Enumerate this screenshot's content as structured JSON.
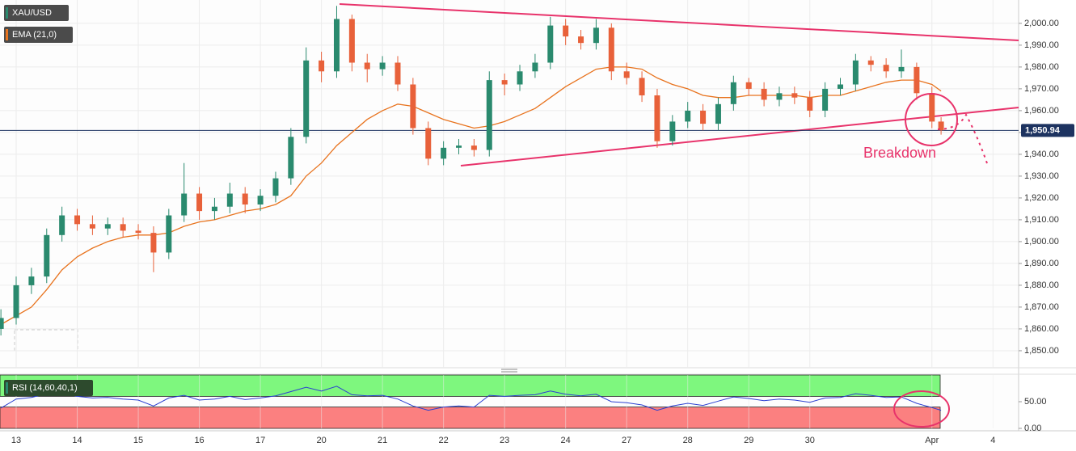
{
  "chart_data": {
    "type": "candlestick",
    "x": [
      -0.25,
      0,
      0.25,
      0.5,
      0.75,
      1,
      1.25,
      1.5,
      1.75,
      2,
      2.25,
      2.5,
      2.75,
      3,
      3.25,
      3.5,
      3.75,
      4,
      4.25,
      4.5,
      4.75,
      5,
      5.25,
      5.5,
      5.75,
      6,
      6.25,
      6.5,
      6.75,
      7,
      7.25,
      7.5,
      7.75,
      8,
      8.25,
      8.5,
      8.75,
      9,
      9.25,
      9.5,
      9.75,
      10,
      10.25,
      10.5,
      10.75,
      11,
      11.25,
      11.5,
      11.75,
      12,
      12.25,
      12.5,
      12.75,
      13,
      13.25,
      13.5,
      13.75,
      14,
      14.25,
      14.5,
      14.75,
      15,
      15.15
    ],
    "xlim": [
      -0.265,
      16.42
    ],
    "xticks": [
      {
        "value": 0,
        "label": "13"
      },
      {
        "value": 1,
        "label": "14"
      },
      {
        "value": 2,
        "label": "15"
      },
      {
        "value": 3,
        "label": "16"
      },
      {
        "value": 4,
        "label": "17"
      },
      {
        "value": 5,
        "label": "20"
      },
      {
        "value": 6,
        "label": "21"
      },
      {
        "value": 7,
        "label": "22"
      },
      {
        "value": 8,
        "label": "23"
      },
      {
        "value": 9,
        "label": "24"
      },
      {
        "value": 10,
        "label": "27"
      },
      {
        "value": 11,
        "label": "28"
      },
      {
        "value": 12,
        "label": "29"
      },
      {
        "value": 13,
        "label": "30"
      },
      {
        "value": 15,
        "label": "Apr"
      },
      {
        "value": 16,
        "label": "4"
      }
    ],
    "ylim": [
      1842.2,
      2010.7
    ],
    "yticks": [
      {
        "value": 1850,
        "label": "1,850.00"
      },
      {
        "value": 1860,
        "label": "1,860.00"
      },
      {
        "value": 1870,
        "label": "1,870.00"
      },
      {
        "value": 1880,
        "label": "1,880.00"
      },
      {
        "value": 1890,
        "label": "1,890.00"
      },
      {
        "value": 1900,
        "label": "1,900.00"
      },
      {
        "value": 1910,
        "label": "1,910.00"
      },
      {
        "value": 1920,
        "label": "1,920.00"
      },
      {
        "value": 1930,
        "label": "1,930.00"
      },
      {
        "value": 1940,
        "label": "1,940.00"
      },
      {
        "value": 1950,
        "label": "1,950.00"
      },
      {
        "value": 1960,
        "label": "1,960.00"
      },
      {
        "value": 1970,
        "label": "1,970.00"
      },
      {
        "value": 1980,
        "label": "1,980.00"
      },
      {
        "value": 1990,
        "label": "1,990.00"
      },
      {
        "value": 2000,
        "label": "2,000.00"
      }
    ],
    "grid": true,
    "series": [
      {
        "name": "XAU/USD",
        "type": "candlestick",
        "up_color": "#2a8a6e",
        "down_color": "#e8613a",
        "open": [
          1860,
          1865,
          1880,
          1884,
          1903,
          1912,
          1908,
          1906,
          1908,
          1905,
          1904,
          1895,
          1912,
          1922,
          1914,
          1916,
          1922,
          1917,
          1921,
          1929,
          1948,
          1983,
          1978,
          2002,
          1982,
          1979,
          1982,
          1972,
          1952,
          1938,
          1943,
          1944,
          1942,
          1974,
          1972,
          1978,
          1982,
          1999,
          1994,
          1991,
          1998,
          1978,
          1975,
          1967,
          1946,
          1955,
          1960,
          1954,
          1963,
          1973,
          1970,
          1965,
          1968,
          1966,
          1960,
          1970,
          1972,
          1983,
          1981,
          1978,
          1980,
          1968,
          1955
        ],
        "high": [
          1869,
          1884,
          1888,
          1906,
          1916,
          1915,
          1912,
          1911,
          1911,
          1908,
          1907,
          1915,
          1936,
          1925,
          1920,
          1927,
          1925,
          1924,
          1932,
          1952,
          1989,
          1987,
          2008,
          2004,
          1986,
          1985,
          1985,
          1975,
          1955,
          1946,
          1947,
          1947,
          1978,
          1977,
          1981,
          1986,
          2003,
          2002,
          1997,
          2002,
          2000,
          1982,
          1978,
          1970,
          1958,
          1964,
          1963,
          1966,
          1976,
          1975,
          1973,
          1971,
          1971,
          1969,
          1973,
          1975,
          1986,
          1985,
          1984,
          1988,
          1982,
          1971,
          1957
        ],
        "low": [
          1857,
          1862,
          1876,
          1881,
          1900,
          1905,
          1903,
          1903,
          1902,
          1901,
          1886,
          1892,
          1909,
          1910,
          1910,
          1913,
          1913,
          1914,
          1918,
          1926,
          1945,
          1973,
          1975,
          1978,
          1973,
          1976,
          1969,
          1949,
          1935,
          1935,
          1940,
          1939,
          1939,
          1967,
          1969,
          1975,
          1979,
          1990,
          1988,
          1988,
          1974,
          1972,
          1964,
          1943,
          1944,
          1952,
          1951,
          1951,
          1960,
          1967,
          1962,
          1962,
          1963,
          1957,
          1957,
          1967,
          1969,
          1978,
          1975,
          1975,
          1965,
          1952,
          1949
        ],
        "close": [
          1865,
          1880,
          1884,
          1903,
          1912,
          1908,
          1906,
          1908,
          1905,
          1904,
          1895,
          1912,
          1922,
          1914,
          1916,
          1922,
          1917,
          1921,
          1929,
          1948,
          1983,
          1978,
          2002,
          1982,
          1979,
          1982,
          1972,
          1952,
          1938,
          1943,
          1944,
          1942,
          1974,
          1972,
          1978,
          1982,
          1999,
          1994,
          1991,
          1998,
          1978,
          1975,
          1967,
          1946,
          1955,
          1960,
          1954,
          1963,
          1973,
          1970,
          1965,
          1968,
          1966,
          1960,
          1970,
          1972,
          1983,
          1981,
          1978,
          1980,
          1968,
          1955,
          1951
        ]
      },
      {
        "name": "EMA (21,0)",
        "type": "line",
        "color": "#e8731e",
        "values": [
          1862,
          1866,
          1870,
          1878,
          1887,
          1893,
          1897,
          1900,
          1902,
          1903,
          1903,
          1904,
          1907,
          1909,
          1910,
          1912,
          1914,
          1915,
          1917,
          1921,
          1930,
          1936,
          1944,
          1950,
          1956,
          1960,
          1963,
          1962,
          1959,
          1956,
          1954,
          1952,
          1953,
          1955,
          1958,
          1961,
          1966,
          1971,
          1975,
          1979,
          1980,
          1980,
          1979,
          1975,
          1972,
          1970,
          1967,
          1966,
          1966,
          1967,
          1967,
          1967,
          1967,
          1966,
          1967,
          1967,
          1969,
          1971,
          1973,
          1974,
          1974,
          1972,
          1969
        ]
      }
    ],
    "last_price": {
      "value": 1950.94,
      "label": "1,950.94"
    },
    "annotation": "Breakdown",
    "rsi": {
      "name": "RSI (14,60,40,1)",
      "color": "#2b3fd1",
      "ylim": [
        0,
        100
      ],
      "yticks": [
        {
          "value": 0,
          "label": "0.00"
        },
        {
          "value": 50,
          "label": "50.00"
        }
      ],
      "upper_band": 60,
      "lower_band": 40,
      "upper_color": "#7ef77e",
      "lower_color": "#fb8080",
      "values": [
        38,
        55,
        58,
        65,
        66,
        60,
        57,
        58,
        55,
        53,
        42,
        57,
        62,
        53,
        55,
        60,
        54,
        57,
        61,
        69,
        77,
        70,
        79,
        63,
        61,
        62,
        55,
        42,
        34,
        40,
        42,
        40,
        62,
        60,
        62,
        63,
        70,
        64,
        61,
        64,
        50,
        48,
        44,
        34,
        42,
        47,
        43,
        51,
        59,
        56,
        52,
        55,
        53,
        49,
        57,
        58,
        65,
        62,
        58,
        59,
        47,
        39,
        34
      ]
    }
  }
}
